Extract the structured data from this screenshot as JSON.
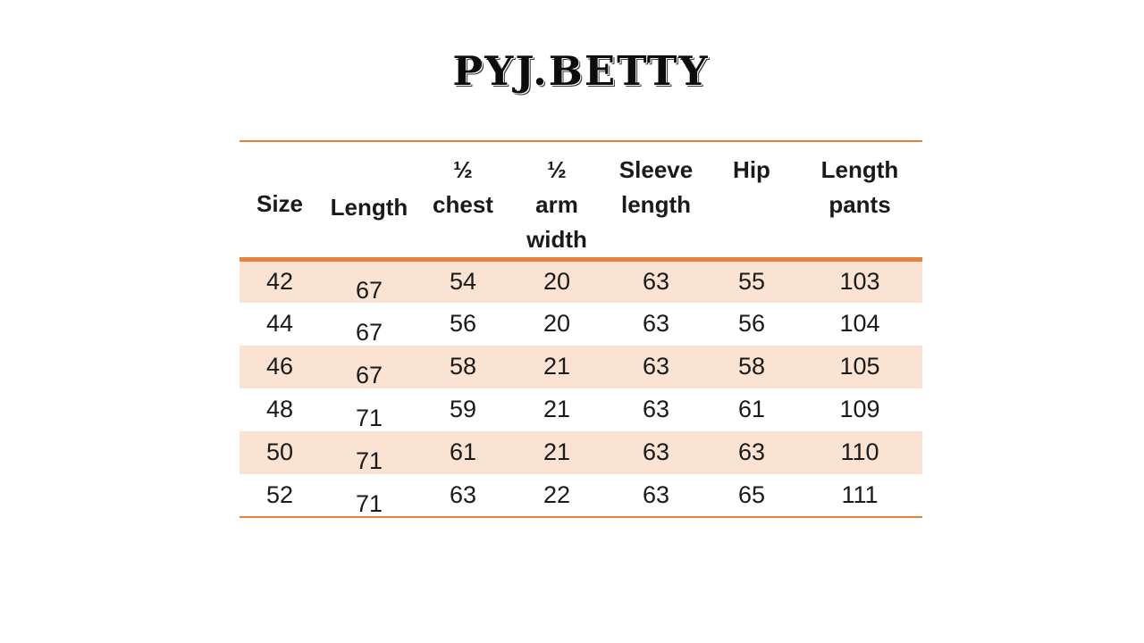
{
  "title": "PYJ.BETTY",
  "colors": {
    "accent_rule": "#E8823A",
    "row_band": "#FAE3D2",
    "text": "#1A1A1A",
    "background": "#FFFFFF"
  },
  "size_chart": {
    "headers": [
      {
        "label": "Size"
      },
      {
        "label": "Length"
      },
      {
        "label": "½\nchest"
      },
      {
        "label": "½\narm\nwidth"
      },
      {
        "label": "Sleeve\nlength"
      },
      {
        "label": "Hip"
      },
      {
        "label": "Length\npants"
      }
    ],
    "rows": [
      [
        "42",
        "67",
        "54",
        "20",
        "63",
        "55",
        "103"
      ],
      [
        "44",
        "67",
        "56",
        "20",
        "63",
        "56",
        "104"
      ],
      [
        "46",
        "67",
        "58",
        "21",
        "63",
        "58",
        "105"
      ],
      [
        "48",
        "71",
        "59",
        "21",
        "63",
        "61",
        "109"
      ],
      [
        "50",
        "71",
        "61",
        "21",
        "63",
        "63",
        "110"
      ],
      [
        "52",
        "71",
        "63",
        "22",
        "63",
        "65",
        "111"
      ]
    ]
  },
  "chart_data": {
    "type": "table",
    "title": "PYJ.BETTY",
    "columns": [
      "Size",
      "Length",
      "½ chest",
      "½ arm width",
      "Sleeve length",
      "Hip",
      "Length pants"
    ],
    "rows": [
      [
        42,
        67,
        54,
        20,
        63,
        55,
        103
      ],
      [
        44,
        67,
        56,
        20,
        63,
        56,
        104
      ],
      [
        46,
        67,
        58,
        21,
        63,
        58,
        105
      ],
      [
        48,
        71,
        59,
        21,
        63,
        61,
        109
      ],
      [
        50,
        71,
        61,
        21,
        63,
        63,
        110
      ],
      [
        52,
        71,
        63,
        22,
        63,
        65,
        111
      ]
    ],
    "layout": {
      "banded_rows": "odd rows shaded peach",
      "rules": "thin orange rule above header and below last row, thick orange rule under header"
    }
  }
}
